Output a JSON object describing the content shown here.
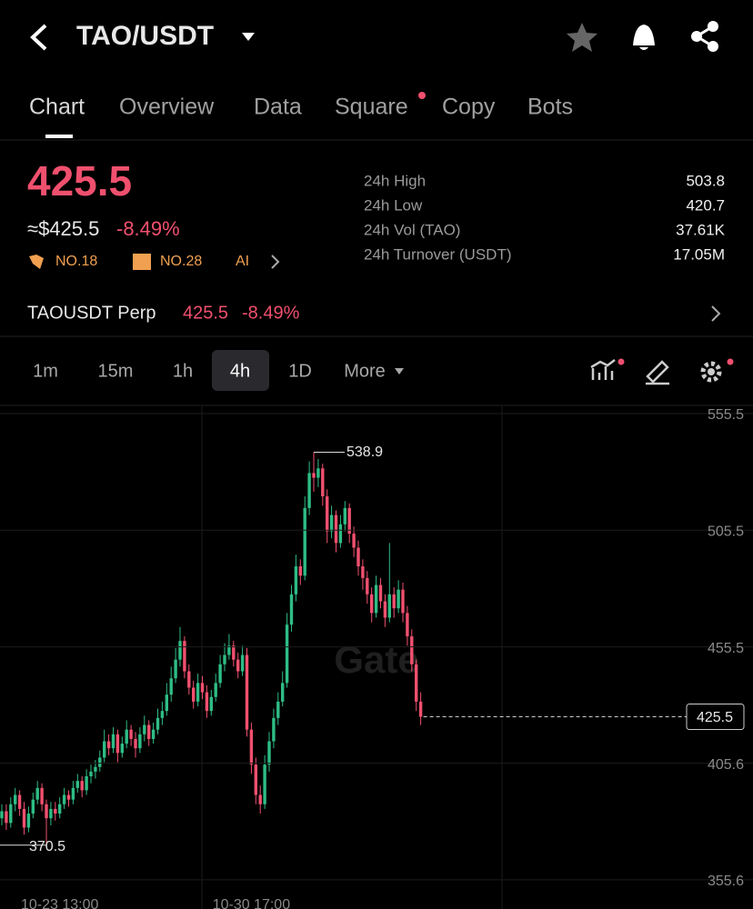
{
  "header": {
    "pair": "TAO/USDT"
  },
  "tabs": [
    "Chart",
    "Overview",
    "Data",
    "Square",
    "Copy",
    "Bots"
  ],
  "ticker": {
    "price": "425.5",
    "usd_price": "≈$425.5",
    "change": "-8.49%",
    "ranks": [
      "NO.18",
      "NO.28",
      "AI"
    ],
    "stats": [
      {
        "label": "24h High",
        "value": "503.8"
      },
      {
        "label": "24h Low",
        "value": "420.7"
      },
      {
        "label": "24h Vol (TAO)",
        "value": "37.61K"
      },
      {
        "label": "24h Turnover (USDT)",
        "value": "17.05M"
      }
    ]
  },
  "perp": {
    "name": "TAOUSDT Perp",
    "price": "425.5",
    "change": "-8.49%"
  },
  "timeframes": [
    "1m",
    "15m",
    "1h",
    "4h",
    "1D",
    "More"
  ],
  "watermark": "Gate",
  "chart_data": {
    "type": "candlestick",
    "up_color": "#2ebd85",
    "down_color": "#f0506e",
    "ylim": [
      347,
      558.6
    ],
    "yticks": [
      555.5,
      505.5,
      455.5,
      405.6,
      355.6
    ],
    "grid": true,
    "categories": [
      null,
      null,
      null,
      null,
      null,
      null,
      null,
      null,
      null,
      null,
      null,
      null,
      null,
      "10-23 13:00",
      null,
      null,
      null,
      null,
      null,
      null,
      null,
      null,
      null,
      null,
      null,
      null,
      null,
      null,
      null,
      null,
      null,
      null,
      null,
      null,
      null,
      null,
      null,
      null,
      null,
      null,
      null,
      null,
      null,
      null,
      null,
      null,
      null,
      null,
      null,
      null,
      null,
      null,
      null,
      null,
      null,
      null,
      "10-30 17:00",
      null,
      null,
      null,
      null,
      null,
      null,
      null,
      null,
      null,
      null,
      null,
      null,
      null,
      null,
      null,
      null,
      null,
      null,
      null,
      null,
      null,
      null,
      null,
      null,
      null,
      null,
      null,
      null,
      null,
      null,
      null,
      null,
      null,
      null,
      null,
      null,
      null,
      null
    ],
    "ohlc": [
      [
        382,
        388,
        379,
        385
      ],
      [
        385,
        388,
        377,
        380
      ],
      [
        380,
        391,
        378,
        388
      ],
      [
        388,
        395,
        385,
        392
      ],
      [
        392,
        394,
        383,
        386
      ],
      [
        386,
        389,
        375,
        378
      ],
      [
        378,
        387,
        376,
        384
      ],
      [
        384,
        393,
        382,
        390
      ],
      [
        390,
        398,
        388,
        395
      ],
      [
        395,
        397,
        385,
        388
      ],
      [
        388,
        390,
        370.5,
        382
      ],
      [
        382,
        389,
        379,
        386
      ],
      [
        386,
        389,
        381,
        384
      ],
      [
        384,
        391,
        382,
        388
      ],
      [
        388,
        395,
        386,
        392
      ],
      [
        392,
        394,
        387,
        390
      ],
      [
        390,
        398,
        388,
        395
      ],
      [
        395,
        401,
        393,
        398
      ],
      [
        398,
        400,
        391,
        394
      ],
      [
        394,
        403,
        392,
        400
      ],
      [
        400,
        405,
        397,
        402
      ],
      [
        402,
        407,
        399,
        404
      ],
      [
        404,
        411,
        402,
        408
      ],
      [
        408,
        420,
        406,
        415
      ],
      [
        415,
        418,
        409,
        412
      ],
      [
        412,
        421,
        410,
        418
      ],
      [
        418,
        420,
        406,
        410
      ],
      [
        410,
        417,
        408,
        414
      ],
      [
        414,
        424,
        412,
        420
      ],
      [
        420,
        422,
        413,
        416
      ],
      [
        416,
        419,
        408,
        412
      ],
      [
        412,
        421,
        410,
        418
      ],
      [
        418,
        426,
        415,
        422
      ],
      [
        422,
        424,
        413,
        416
      ],
      [
        416,
        423,
        414,
        420
      ],
      [
        420,
        429,
        418,
        425
      ],
      [
        425,
        432,
        422,
        428
      ],
      [
        428,
        440,
        426,
        435
      ],
      [
        435,
        447,
        432,
        442
      ],
      [
        442,
        455,
        440,
        450
      ],
      [
        450,
        464,
        447,
        458
      ],
      [
        458,
        460,
        442,
        445
      ],
      [
        445,
        448,
        435,
        438
      ],
      [
        438,
        441,
        429,
        432
      ],
      [
        432,
        444,
        430,
        440
      ],
      [
        440,
        443,
        433,
        436
      ],
      [
        436,
        439,
        425,
        428
      ],
      [
        428,
        437,
        426,
        434
      ],
      [
        434,
        444,
        432,
        440
      ],
      [
        440,
        452,
        438,
        448
      ],
      [
        448,
        457,
        445,
        452
      ],
      [
        452,
        461,
        450,
        456
      ],
      [
        456,
        458,
        447,
        450
      ],
      [
        450,
        453,
        442,
        445
      ],
      [
        445,
        456,
        443,
        452
      ],
      [
        452,
        455,
        417,
        420
      ],
      [
        420,
        423,
        401,
        405
      ],
      [
        405,
        408,
        388,
        392
      ],
      [
        392,
        396,
        384,
        388
      ],
      [
        388,
        409,
        386,
        405
      ],
      [
        405,
        419,
        402,
        415
      ],
      [
        415,
        429,
        412,
        425
      ],
      [
        425,
        436,
        422,
        432
      ],
      [
        432,
        445,
        430,
        440
      ],
      [
        440,
        470,
        438,
        465
      ],
      [
        465,
        482,
        462,
        478
      ],
      [
        478,
        495,
        475,
        490
      ],
      [
        490,
        493,
        482,
        486
      ],
      [
        486,
        520,
        484,
        515
      ],
      [
        515,
        535,
        512,
        530
      ],
      [
        530,
        538.9,
        522,
        528
      ],
      [
        528,
        536,
        524,
        532
      ],
      [
        532,
        534,
        516,
        520
      ],
      [
        520,
        523,
        500,
        505
      ],
      [
        505,
        516,
        502,
        512
      ],
      [
        512,
        514,
        496,
        500
      ],
      [
        500,
        512,
        498,
        508
      ],
      [
        508,
        518,
        505,
        515
      ],
      [
        515,
        517,
        500,
        504
      ],
      [
        504,
        507,
        494,
        498
      ],
      [
        498,
        501,
        486,
        490
      ],
      [
        490,
        493,
        480,
        485
      ],
      [
        485,
        488,
        474,
        478
      ],
      [
        478,
        481,
        466,
        470
      ],
      [
        470,
        486,
        468,
        482
      ],
      [
        482,
        485,
        472,
        475
      ],
      [
        475,
        478,
        464,
        468
      ],
      [
        468,
        500,
        466,
        478
      ],
      [
        478,
        481,
        468,
        472
      ],
      [
        472,
        484,
        470,
        480
      ],
      [
        480,
        483,
        466,
        470
      ],
      [
        470,
        473,
        456,
        460
      ],
      [
        460,
        463,
        445,
        448
      ],
      [
        448,
        450,
        428,
        432
      ],
      [
        432,
        436,
        422,
        425.5
      ]
    ]
  }
}
